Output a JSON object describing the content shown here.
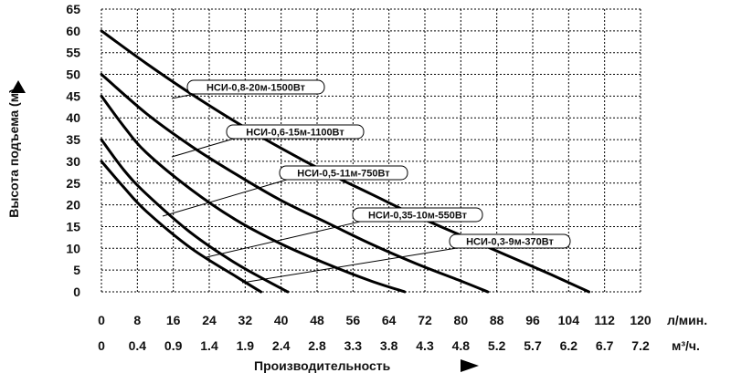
{
  "chart_data": {
    "type": "line",
    "ylabel": "Высота подъема (м)",
    "xlabel": "Производительность",
    "ylim": [
      0,
      65
    ],
    "y_ticks": [
      "0",
      "5",
      "10",
      "15",
      "20",
      "25",
      "30",
      "35",
      "40",
      "45",
      "50",
      "55",
      "60",
      "65"
    ],
    "x_ticks_lmin": [
      "0",
      "8",
      "16",
      "24",
      "32",
      "40",
      "48",
      "56",
      "64",
      "72",
      "80",
      "88",
      "96",
      "104",
      "112",
      "120"
    ],
    "x_ticks_m3h": [
      "0",
      "0.4",
      "0.9",
      "1.4",
      "1.9",
      "2.4",
      "2.8",
      "3.3",
      "3.8",
      "4.3",
      "4.8",
      "5.2",
      "5.7",
      "6.2",
      "6.7",
      "7.2"
    ],
    "unit_lmin": "л/мин.",
    "unit_m3h": "м³/ч.",
    "xlim": [
      0,
      120
    ],
    "grid": true,
    "series": [
      {
        "name": "НСИ-0,8-20м-1500Вт",
        "x": [
          0,
          10,
          20,
          30,
          40,
          50,
          60,
          70,
          80,
          90,
          100,
          108.5
        ],
        "y": [
          60,
          52.5,
          45.5,
          39,
          33,
          27.5,
          22.5,
          17.5,
          13,
          8.5,
          4,
          0
        ]
      },
      {
        "name": "НСИ-0,6-15м-1100Вт",
        "x": [
          0,
          10,
          20,
          30,
          40,
          50,
          60,
          70,
          80,
          86
        ],
        "y": [
          50,
          41,
          33.5,
          27,
          21,
          16,
          11,
          6.5,
          2.5,
          0
        ]
      },
      {
        "name": "НСИ-0,5-11м-750Вт",
        "x": [
          0,
          5,
          10,
          20,
          30,
          40,
          50,
          60,
          67.5
        ],
        "y": [
          45,
          38,
          32,
          23.5,
          16.5,
          11,
          6.5,
          2.5,
          0
        ]
      },
      {
        "name": "НСИ-0,35-10м-550Вт",
        "x": [
          0,
          5,
          10,
          20,
          30,
          40,
          41.5
        ],
        "y": [
          35,
          28,
          22.5,
          13.5,
          6.5,
          0.8,
          0
        ]
      },
      {
        "name": "НСИ-0,3-9м-370Вт",
        "x": [
          0,
          5,
          10,
          20,
          30,
          35.5
        ],
        "y": [
          30,
          24,
          18.5,
          10,
          3.5,
          0
        ]
      }
    ]
  }
}
